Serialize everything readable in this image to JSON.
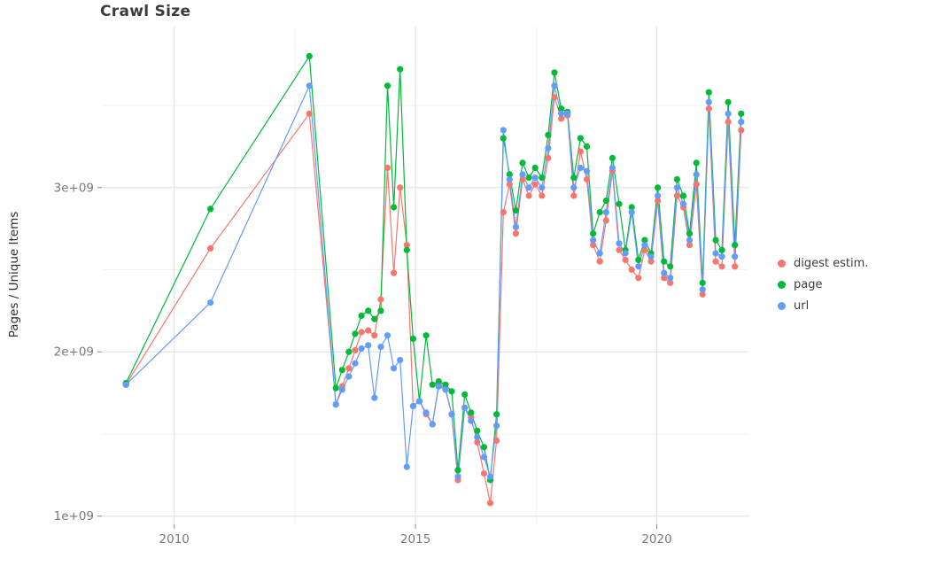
{
  "chart_data": {
    "type": "line",
    "title": "Crawl Size",
    "xlabel": "",
    "ylabel": "Pages / Unique Items",
    "y_unit": "pages / unique items, values in billions (value x 1e9)",
    "x_unit": "decimal year",
    "grid": true,
    "legend_position": "right",
    "xlim": [
      2008.5,
      2021.9
    ],
    "ylim": [
      0.95,
      3.98
    ],
    "x_ticks": [
      {
        "value": 2010,
        "label": "2010"
      },
      {
        "value": 2015,
        "label": "2015"
      },
      {
        "value": 2020,
        "label": "2020"
      }
    ],
    "y_ticks": [
      {
        "value": 1,
        "label": "1e+09"
      },
      {
        "value": 2,
        "label": "2e+09"
      },
      {
        "value": 3,
        "label": "3e+09"
      }
    ],
    "x_minor_ticks": [
      2012.5,
      2017.5
    ],
    "y_minor_ticks": [
      1.5,
      2.5,
      3.5
    ],
    "x": [
      2009.0,
      2010.75,
      2012.8,
      2013.35,
      2013.48,
      2013.62,
      2013.75,
      2013.88,
      2014.02,
      2014.15,
      2014.28,
      2014.42,
      2014.55,
      2014.68,
      2014.82,
      2014.95,
      2015.08,
      2015.22,
      2015.35,
      2015.48,
      2015.62,
      2015.75,
      2015.88,
      2016.02,
      2016.15,
      2016.28,
      2016.42,
      2016.55,
      2016.68,
      2016.82,
      2016.95,
      2017.08,
      2017.22,
      2017.35,
      2017.48,
      2017.62,
      2017.75,
      2017.88,
      2018.02,
      2018.15,
      2018.28,
      2018.42,
      2018.55,
      2018.68,
      2018.82,
      2018.95,
      2019.08,
      2019.22,
      2019.35,
      2019.48,
      2019.62,
      2019.75,
      2019.88,
      2020.02,
      2020.15,
      2020.28,
      2020.42,
      2020.55,
      2020.68,
      2020.82,
      2020.95,
      2021.08,
      2021.22,
      2021.35,
      2021.48,
      2021.62,
      2021.75
    ],
    "series": [
      {
        "name": "digest estim.",
        "color": "#F8766D",
        "values": [
          1.8,
          2.63,
          3.45,
          1.68,
          1.79,
          1.9,
          2.01,
          2.12,
          2.13,
          2.1,
          2.32,
          3.12,
          2.48,
          3.0,
          2.65,
          1.67,
          1.7,
          1.62,
          1.56,
          1.8,
          1.78,
          1.62,
          1.22,
          1.66,
          1.6,
          1.45,
          1.26,
          1.08,
          1.46,
          2.85,
          3.02,
          2.72,
          3.05,
          2.95,
          3.02,
          2.95,
          3.18,
          3.55,
          3.42,
          3.44,
          2.95,
          3.22,
          3.05,
          2.65,
          2.55,
          2.8,
          3.1,
          2.62,
          2.56,
          2.5,
          2.45,
          2.62,
          2.55,
          2.92,
          2.45,
          2.42,
          2.95,
          2.88,
          2.65,
          3.02,
          2.35,
          3.48,
          2.55,
          2.52,
          3.4,
          2.52,
          3.35
        ]
      },
      {
        "name": "page",
        "color": "#00BA38",
        "values": [
          1.81,
          2.87,
          3.8,
          1.78,
          1.89,
          2.0,
          2.11,
          2.22,
          2.25,
          2.2,
          2.25,
          3.62,
          2.88,
          3.72,
          2.62,
          2.08,
          1.7,
          2.1,
          1.8,
          1.82,
          1.8,
          1.76,
          1.28,
          1.74,
          1.63,
          1.52,
          1.42,
          1.22,
          1.62,
          3.3,
          3.08,
          2.86,
          3.15,
          3.06,
          3.12,
          3.06,
          3.32,
          3.7,
          3.48,
          3.46,
          3.06,
          3.3,
          3.25,
          2.72,
          2.85,
          2.92,
          3.18,
          2.9,
          2.62,
          2.88,
          2.56,
          2.68,
          2.6,
          3.0,
          2.55,
          2.52,
          3.05,
          2.95,
          2.72,
          3.15,
          2.42,
          3.58,
          2.68,
          2.62,
          3.52,
          2.65,
          3.45
        ]
      },
      {
        "name": "url",
        "color": "#619CFF",
        "values": [
          1.8,
          2.3,
          3.62,
          1.68,
          1.77,
          1.85,
          1.93,
          2.02,
          2.04,
          1.72,
          2.03,
          2.1,
          1.9,
          1.95,
          1.3,
          1.67,
          1.7,
          1.63,
          1.56,
          1.79,
          1.77,
          1.62,
          1.24,
          1.66,
          1.58,
          1.48,
          1.36,
          1.24,
          1.55,
          3.35,
          3.05,
          2.76,
          3.08,
          3.0,
          3.06,
          3.0,
          3.24,
          3.62,
          3.45,
          3.45,
          3.0,
          3.12,
          3.1,
          2.68,
          2.6,
          2.85,
          3.12,
          2.66,
          2.6,
          2.85,
          2.52,
          2.65,
          2.58,
          2.95,
          2.48,
          2.45,
          3.0,
          2.9,
          2.68,
          3.08,
          2.38,
          3.52,
          2.6,
          2.58,
          3.45,
          2.58,
          3.4
        ]
      }
    ]
  }
}
